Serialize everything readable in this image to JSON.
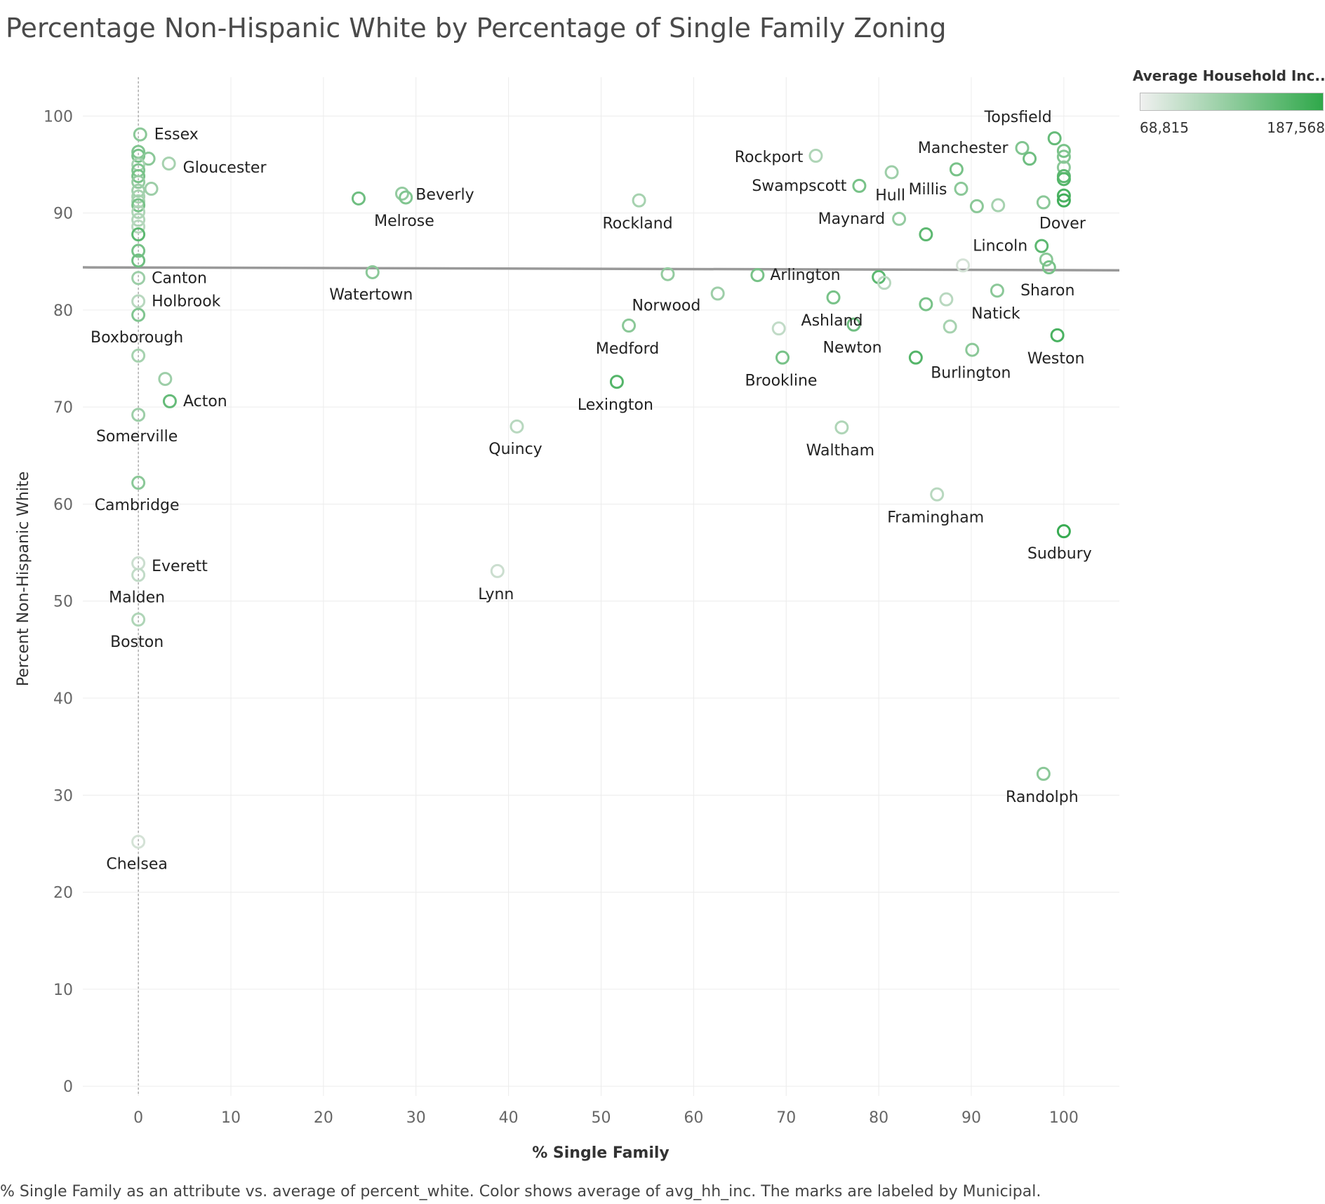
{
  "page": {
    "title": "Percentage Non-Hispanic White by Percentage of Single Family Zoning",
    "footnote": "% Single Family as an attribute vs. average of percent_white.  Color shows average of avg_hh_inc.  The marks are labeled by Municipal."
  },
  "legend": {
    "title": "Average Household Inc..",
    "min_label": "68,815",
    "max_label": "187,568",
    "min_value": 68815,
    "max_value": 187568,
    "color_low": "#f0f0f0",
    "color_high": "#2fa84a"
  },
  "chart_data": {
    "type": "scatter",
    "xlabel": "% Single Family",
    "ylabel": "Percent Non-Hispanic White",
    "xlim": [
      -6,
      106
    ],
    "ylim": [
      -1,
      104
    ],
    "x_ticks": [
      0,
      10,
      20,
      30,
      40,
      50,
      60,
      70,
      80,
      90,
      100
    ],
    "y_ticks": [
      0,
      10,
      20,
      30,
      40,
      50,
      60,
      70,
      80,
      90,
      100
    ],
    "grid": true,
    "reference_line_x": 0,
    "trend_line": {
      "x": [
        -6,
        106
      ],
      "y": [
        84.4,
        84.1
      ]
    },
    "points": [
      {
        "x": 0.2,
        "y": 98.1,
        "c": 0.5,
        "label": "Essex"
      },
      {
        "x": 3.3,
        "y": 95.1,
        "c": 0.35,
        "label": "Gloucester"
      },
      {
        "x": 0,
        "y": 96.3,
        "c": 0.55
      },
      {
        "x": 0,
        "y": 95.9,
        "c": 0.6
      },
      {
        "x": 1.1,
        "y": 95.6,
        "c": 0.5
      },
      {
        "x": 0,
        "y": 95.0,
        "c": 0.35
      },
      {
        "x": 0,
        "y": 94.4,
        "c": 0.55
      },
      {
        "x": 0,
        "y": 93.8,
        "c": 0.6
      },
      {
        "x": 0,
        "y": 93.2,
        "c": 0.45
      },
      {
        "x": 1.4,
        "y": 92.5,
        "c": 0.4
      },
      {
        "x": 0,
        "y": 92.3,
        "c": 0.4
      },
      {
        "x": 0,
        "y": 91.7,
        "c": 0.35
      },
      {
        "x": 0,
        "y": 91.2,
        "c": 0.35
      },
      {
        "x": 0,
        "y": 90.8,
        "c": 0.6
      },
      {
        "x": 0,
        "y": 90.1,
        "c": 0.3
      },
      {
        "x": 0,
        "y": 89.3,
        "c": 0.3
      },
      {
        "x": 0,
        "y": 88.6,
        "c": 0.25
      },
      {
        "x": 0,
        "y": 87.8,
        "c": 0.75
      },
      {
        "x": 0,
        "y": 86.1,
        "c": 0.6
      },
      {
        "x": 0,
        "y": 85.1,
        "c": 0.65
      },
      {
        "x": 0,
        "y": 83.3,
        "c": 0.4,
        "label": "Canton"
      },
      {
        "x": 0,
        "y": 80.9,
        "c": 0.25,
        "label": "Holbrook"
      },
      {
        "x": 0,
        "y": 79.5,
        "c": 0.55,
        "label": "Boxborough"
      },
      {
        "x": 0,
        "y": 75.3,
        "c": 0.35
      },
      {
        "x": 2.9,
        "y": 72.9,
        "c": 0.4
      },
      {
        "x": 3.4,
        "y": 70.6,
        "c": 0.7,
        "label": "Acton"
      },
      {
        "x": 0,
        "y": 69.2,
        "c": 0.4,
        "label": "Somerville"
      },
      {
        "x": 0,
        "y": 62.2,
        "c": 0.5,
        "label": "Cambridge"
      },
      {
        "x": 0,
        "y": 53.9,
        "c": 0.15,
        "label": "Everett"
      },
      {
        "x": 0,
        "y": 52.7,
        "c": 0.2,
        "label": "Malden"
      },
      {
        "x": 0,
        "y": 48.1,
        "c": 0.3,
        "label": "Boston"
      },
      {
        "x": 0,
        "y": 25.2,
        "c": 0.1,
        "label": "Chelsea"
      },
      {
        "x": 23.8,
        "y": 91.5,
        "c": 0.65,
        "label": "Melrose"
      },
      {
        "x": 28.5,
        "y": 92.0,
        "c": 0.45
      },
      {
        "x": 28.9,
        "y": 91.6,
        "c": 0.55,
        "label": "Beverly"
      },
      {
        "x": 25.3,
        "y": 83.9,
        "c": 0.5,
        "label": "Watertown"
      },
      {
        "x": 40.9,
        "y": 68.0,
        "c": 0.25,
        "label": "Quincy"
      },
      {
        "x": 38.8,
        "y": 53.1,
        "c": 0.15,
        "label": "Lynn"
      },
      {
        "x": 54.1,
        "y": 91.3,
        "c": 0.35,
        "label": "Rockland"
      },
      {
        "x": 57.2,
        "y": 83.7,
        "c": 0.45,
        "label": "Norwood"
      },
      {
        "x": 62.6,
        "y": 81.7,
        "c": 0.4
      },
      {
        "x": 53.0,
        "y": 78.4,
        "c": 0.5,
        "label": "Medford"
      },
      {
        "x": 51.7,
        "y": 72.6,
        "c": 0.8,
        "label": "Lexington"
      },
      {
        "x": 66.9,
        "y": 83.6,
        "c": 0.6,
        "label": "Arlington"
      },
      {
        "x": 73.2,
        "y": 95.9,
        "c": 0.3,
        "label": "Rockport"
      },
      {
        "x": 77.9,
        "y": 92.8,
        "c": 0.6,
        "label": "Swampscott"
      },
      {
        "x": 81.4,
        "y": 94.2,
        "c": 0.4,
        "label": "Hull"
      },
      {
        "x": 88.4,
        "y": 94.5,
        "c": 0.6
      },
      {
        "x": 88.9,
        "y": 92.5,
        "c": 0.5,
        "label": "Millis"
      },
      {
        "x": 82.2,
        "y": 89.4,
        "c": 0.45,
        "label": "Maynard"
      },
      {
        "x": 85.1,
        "y": 87.8,
        "c": 0.75
      },
      {
        "x": 90.6,
        "y": 90.7,
        "c": 0.5
      },
      {
        "x": 92.9,
        "y": 90.8,
        "c": 0.35
      },
      {
        "x": 80.0,
        "y": 83.4,
        "c": 0.75
      },
      {
        "x": 80.6,
        "y": 82.8,
        "c": 0.25
      },
      {
        "x": 89.1,
        "y": 84.6,
        "c": 0.1
      },
      {
        "x": 75.1,
        "y": 81.3,
        "c": 0.6,
        "label": "Ashland"
      },
      {
        "x": 85.1,
        "y": 80.6,
        "c": 0.6
      },
      {
        "x": 87.3,
        "y": 81.1,
        "c": 0.25
      },
      {
        "x": 92.8,
        "y": 82.0,
        "c": 0.5,
        "label": "Natick"
      },
      {
        "x": 69.2,
        "y": 78.1,
        "c": 0.2
      },
      {
        "x": 77.3,
        "y": 78.5,
        "c": 0.65,
        "label": "Newton"
      },
      {
        "x": 87.7,
        "y": 78.3,
        "c": 0.35
      },
      {
        "x": 69.6,
        "y": 75.1,
        "c": 0.6,
        "label": "Brookline"
      },
      {
        "x": 84.0,
        "y": 75.1,
        "c": 0.8
      },
      {
        "x": 90.1,
        "y": 75.9,
        "c": 0.5,
        "label": "Burlington"
      },
      {
        "x": 76.0,
        "y": 67.9,
        "c": 0.3,
        "label": "Waltham"
      },
      {
        "x": 86.3,
        "y": 61.0,
        "c": 0.25,
        "label": "Framingham"
      },
      {
        "x": 99.0,
        "y": 97.7,
        "c": 0.7,
        "label": "Topsfield"
      },
      {
        "x": 95.5,
        "y": 96.7,
        "c": 0.55,
        "label": "Manchester"
      },
      {
        "x": 96.3,
        "y": 95.6,
        "c": 0.65
      },
      {
        "x": 100,
        "y": 96.4,
        "c": 0.6
      },
      {
        "x": 100,
        "y": 95.8,
        "c": 0.55
      },
      {
        "x": 100,
        "y": 94.7,
        "c": 0.5
      },
      {
        "x": 100,
        "y": 93.8,
        "c": 0.75
      },
      {
        "x": 100,
        "y": 93.5,
        "c": 0.8
      },
      {
        "x": 97.8,
        "y": 91.1,
        "c": 0.5
      },
      {
        "x": 100,
        "y": 91.8,
        "c": 0.85
      },
      {
        "x": 100,
        "y": 91.3,
        "c": 0.9,
        "label": "Dover"
      },
      {
        "x": 97.6,
        "y": 86.6,
        "c": 0.75,
        "label": "Lincoln"
      },
      {
        "x": 98.1,
        "y": 85.2,
        "c": 0.5
      },
      {
        "x": 98.4,
        "y": 84.4,
        "c": 0.6,
        "label": "Sharon"
      },
      {
        "x": 99.3,
        "y": 77.4,
        "c": 0.85,
        "label": "Weston"
      },
      {
        "x": 100,
        "y": 57.2,
        "c": 0.95,
        "label": "Sudbury"
      },
      {
        "x": 97.8,
        "y": 32.2,
        "c": 0.5,
        "label": "Randolph"
      }
    ]
  }
}
